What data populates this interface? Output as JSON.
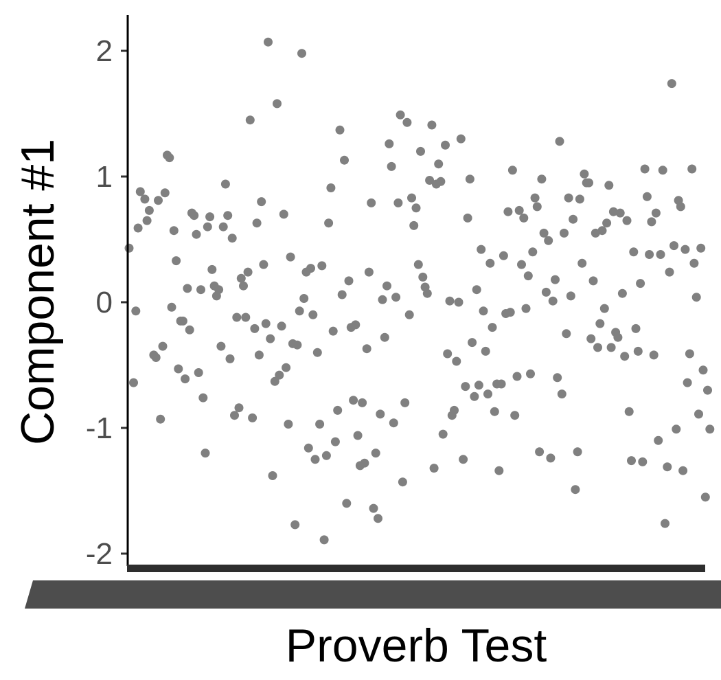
{
  "chart_data": {
    "type": "scatter",
    "title": "",
    "xlabel": "Proverb Test",
    "ylabel": "Component #1",
    "ylim": [
      -2.1,
      2.3
    ],
    "xlim": [
      0,
      340
    ],
    "y_ticks": [
      2,
      1,
      0,
      -1,
      -2
    ],
    "y_tick_labels": [
      "2",
      "1",
      "0",
      "-1",
      "-2"
    ],
    "x_tick_labels_note": "overlapping illegible tick labels rendered as a solid band",
    "grid": false,
    "legend": "none",
    "point_color": "#808080",
    "axis_color": "#000000",
    "series": [
      {
        "points": [
          [
            0,
            0.43
          ],
          [
            2,
            -0.64
          ],
          [
            3,
            -0.07
          ],
          [
            4,
            0.59
          ],
          [
            5,
            0.88
          ],
          [
            7,
            0.82
          ],
          [
            8,
            0.65
          ],
          [
            9,
            0.73
          ],
          [
            11,
            -0.42
          ],
          [
            12,
            -0.44
          ],
          [
            13,
            0.81
          ],
          [
            14,
            -0.93
          ],
          [
            15,
            -0.35
          ],
          [
            16,
            0.87
          ],
          [
            17,
            1.17
          ],
          [
            18,
            1.15
          ],
          [
            19,
            -0.04
          ],
          [
            20,
            0.57
          ],
          [
            21,
            0.33
          ],
          [
            22,
            -0.53
          ],
          [
            23,
            -0.15
          ],
          [
            24,
            -0.15
          ],
          [
            25,
            -0.61
          ],
          [
            26,
            0.11
          ],
          [
            27,
            -0.22
          ],
          [
            28,
            0.71
          ],
          [
            29,
            0.69
          ],
          [
            30,
            0.54
          ],
          [
            31,
            -0.56
          ],
          [
            32,
            0.1
          ],
          [
            33,
            -0.76
          ],
          [
            34,
            -1.2
          ],
          [
            35,
            0.6
          ],
          [
            36,
            0.68
          ],
          [
            37,
            0.26
          ],
          [
            38,
            0.13
          ],
          [
            39,
            0.05
          ],
          [
            40,
            0.1
          ],
          [
            41,
            -0.35
          ],
          [
            42,
            0.6
          ],
          [
            43,
            0.94
          ],
          [
            44,
            0.69
          ],
          [
            45,
            -0.45
          ],
          [
            46,
            0.51
          ],
          [
            47,
            -0.9
          ],
          [
            48,
            -0.12
          ],
          [
            49,
            -0.84
          ],
          [
            50,
            0.19
          ],
          [
            51,
            0.13
          ],
          [
            52,
            -0.12
          ],
          [
            53,
            0.24
          ],
          [
            54,
            1.45
          ],
          [
            55,
            -0.92
          ],
          [
            56,
            -0.21
          ],
          [
            57,
            0.63
          ],
          [
            58,
            -0.42
          ],
          [
            59,
            0.8
          ],
          [
            60,
            0.3
          ],
          [
            61,
            -0.17
          ],
          [
            62,
            2.07
          ],
          [
            63,
            -0.29
          ],
          [
            64,
            -1.38
          ],
          [
            65,
            -0.63
          ],
          [
            66,
            1.58
          ],
          [
            67,
            -0.58
          ],
          [
            68,
            -0.19
          ],
          [
            69,
            0.7
          ],
          [
            70,
            -0.52
          ],
          [
            71,
            -0.97
          ],
          [
            72,
            0.36
          ],
          [
            73,
            -0.33
          ],
          [
            74,
            -1.77
          ],
          [
            75,
            -0.34
          ],
          [
            76,
            -0.07
          ],
          [
            77,
            1.98
          ],
          [
            78,
            0.03
          ],
          [
            79,
            0.24
          ],
          [
            80,
            -1.16
          ],
          [
            81,
            0.27
          ],
          [
            82,
            -0.1
          ],
          [
            83,
            -1.25
          ],
          [
            84,
            -0.4
          ],
          [
            85,
            -0.97
          ],
          [
            86,
            0.29
          ],
          [
            87,
            -1.89
          ],
          [
            88,
            -1.22
          ],
          [
            89,
            0.63
          ],
          [
            90,
            0.91
          ],
          [
            91,
            -0.23
          ],
          [
            92,
            -1.11
          ],
          [
            93,
            -0.86
          ],
          [
            94,
            1.37
          ],
          [
            95,
            0.06
          ],
          [
            96,
            1.13
          ],
          [
            97,
            -1.6
          ],
          [
            98,
            0.17
          ],
          [
            99,
            -0.2
          ],
          [
            100,
            -0.78
          ],
          [
            101,
            -0.18
          ],
          [
            102,
            -1.06
          ],
          [
            103,
            -1.3
          ],
          [
            104,
            -0.8
          ],
          [
            105,
            -1.28
          ],
          [
            106,
            -0.37
          ],
          [
            107,
            0.24
          ],
          [
            108,
            0.79
          ],
          [
            109,
            -1.64
          ],
          [
            110,
            -1.2
          ],
          [
            111,
            -1.72
          ],
          [
            112,
            -0.89
          ],
          [
            113,
            0.02
          ],
          [
            114,
            -0.28
          ],
          [
            115,
            0.13
          ],
          [
            116,
            1.26
          ],
          [
            117,
            1.08
          ],
          [
            118,
            -0.96
          ],
          [
            119,
            0.04
          ],
          [
            120,
            0.79
          ],
          [
            121,
            1.49
          ],
          [
            122,
            -1.43
          ],
          [
            123,
            -0.8
          ],
          [
            124,
            1.43
          ],
          [
            125,
            -0.1
          ],
          [
            126,
            0.83
          ],
          [
            127,
            0.61
          ],
          [
            128,
            0.75
          ],
          [
            129,
            0.3
          ],
          [
            130,
            1.2
          ],
          [
            131,
            0.2
          ],
          [
            132,
            0.12
          ],
          [
            133,
            0.07
          ],
          [
            134,
            0.97
          ],
          [
            135,
            1.41
          ],
          [
            136,
            -1.32
          ],
          [
            137,
            0.94
          ],
          [
            138,
            1.1
          ],
          [
            139,
            0.96
          ],
          [
            140,
            -1.05
          ],
          [
            141,
            1.25
          ],
          [
            142,
            -0.41
          ],
          [
            143,
            0.01
          ],
          [
            144,
            -0.9
          ],
          [
            145,
            -0.86
          ],
          [
            146,
            -0.47
          ],
          [
            147,
            0.0
          ],
          [
            148,
            1.3
          ],
          [
            149,
            -1.25
          ],
          [
            150,
            -0.67
          ],
          [
            151,
            0.67
          ],
          [
            152,
            0.98
          ],
          [
            153,
            -0.32
          ],
          [
            154,
            -0.75
          ],
          [
            155,
            0.1
          ],
          [
            156,
            -0.66
          ],
          [
            157,
            0.42
          ],
          [
            158,
            -0.07
          ],
          [
            159,
            -0.39
          ],
          [
            160,
            -0.73
          ],
          [
            161,
            0.31
          ],
          [
            162,
            -0.2
          ],
          [
            163,
            -0.87
          ],
          [
            164,
            -0.65
          ],
          [
            165,
            -1.34
          ],
          [
            166,
            -0.65
          ],
          [
            167,
            0.37
          ],
          [
            168,
            -0.09
          ],
          [
            169,
            0.72
          ],
          [
            170,
            -0.08
          ],
          [
            171,
            1.05
          ],
          [
            172,
            -0.9
          ],
          [
            173,
            -0.59
          ],
          [
            174,
            0.73
          ],
          [
            175,
            0.3
          ],
          [
            176,
            0.67
          ],
          [
            177,
            -0.05
          ],
          [
            178,
            0.21
          ],
          [
            179,
            -0.57
          ],
          [
            180,
            0.4
          ],
          [
            181,
            0.83
          ],
          [
            182,
            0.76
          ],
          [
            183,
            -1.19
          ],
          [
            184,
            0.98
          ],
          [
            185,
            0.55
          ],
          [
            186,
            0.08
          ],
          [
            187,
            0.49
          ],
          [
            188,
            -1.24
          ],
          [
            189,
            0.01
          ],
          [
            190,
            0.18
          ],
          [
            191,
            -0.6
          ],
          [
            192,
            1.28
          ],
          [
            193,
            -0.73
          ],
          [
            194,
            0.55
          ],
          [
            195,
            -0.25
          ],
          [
            196,
            0.83
          ],
          [
            197,
            0.05
          ],
          [
            198,
            0.66
          ],
          [
            199,
            -1.49
          ],
          [
            200,
            -1.19
          ],
          [
            201,
            0.82
          ],
          [
            202,
            0.31
          ],
          [
            203,
            1.02
          ],
          [
            204,
            0.95
          ],
          [
            205,
            0.95
          ],
          [
            206,
            -0.29
          ],
          [
            207,
            0.17
          ],
          [
            208,
            0.55
          ],
          [
            209,
            -0.36
          ],
          [
            210,
            -0.17
          ],
          [
            211,
            0.57
          ],
          [
            212,
            -0.05
          ],
          [
            213,
            0.63
          ],
          [
            214,
            0.93
          ],
          [
            215,
            -0.36
          ],
          [
            216,
            0.72
          ],
          [
            217,
            -0.24
          ],
          [
            218,
            -0.28
          ],
          [
            219,
            0.71
          ],
          [
            220,
            0.07
          ],
          [
            221,
            -0.43
          ],
          [
            222,
            0.65
          ],
          [
            223,
            -0.87
          ],
          [
            224,
            -1.26
          ],
          [
            225,
            0.4
          ],
          [
            226,
            -0.21
          ],
          [
            227,
            -0.39
          ],
          [
            228,
            0.15
          ],
          [
            229,
            -1.27
          ],
          [
            230,
            1.06
          ],
          [
            231,
            0.84
          ],
          [
            232,
            0.38
          ],
          [
            233,
            0.64
          ],
          [
            234,
            -0.42
          ],
          [
            235,
            0.71
          ],
          [
            236,
            -1.1
          ],
          [
            237,
            0.38
          ],
          [
            238,
            1.05
          ],
          [
            239,
            -1.76
          ],
          [
            240,
            -1.31
          ],
          [
            241,
            0.24
          ],
          [
            242,
            1.74
          ],
          [
            243,
            0.45
          ],
          [
            244,
            -1.01
          ],
          [
            245,
            0.81
          ],
          [
            246,
            0.76
          ],
          [
            247,
            -1.34
          ],
          [
            248,
            0.42
          ],
          [
            249,
            -0.64
          ],
          [
            250,
            -0.41
          ],
          [
            251,
            1.06
          ],
          [
            252,
            0.31
          ],
          [
            253,
            0.04
          ],
          [
            254,
            -0.89
          ],
          [
            255,
            0.43
          ],
          [
            256,
            -0.54
          ],
          [
            257,
            -1.55
          ],
          [
            258,
            -0.7
          ],
          [
            259,
            -1.01
          ]
        ]
      }
    ]
  }
}
